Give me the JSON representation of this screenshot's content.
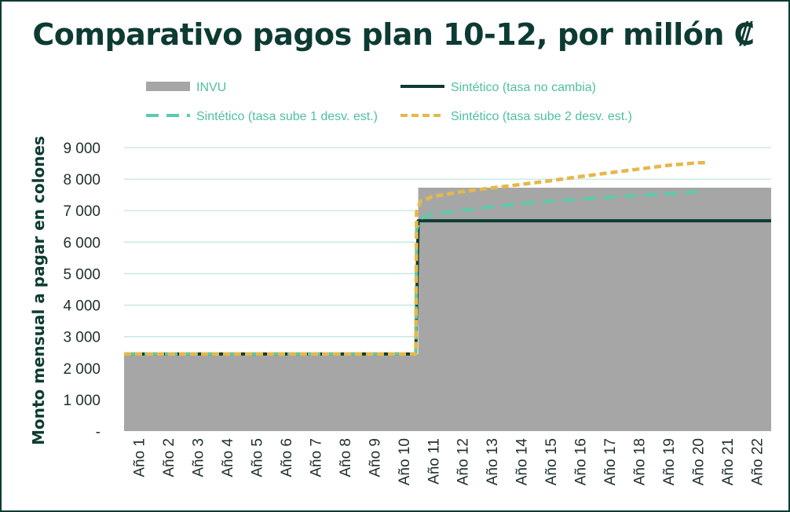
{
  "chart_data": {
    "type": "line",
    "title": "Comparativo pagos plan 10-12, por millón ₡",
    "ylabel": "Monto mensual a pagar en colones",
    "xlabel": "",
    "ylim": [
      0,
      9000
    ],
    "y_ticks": [
      {
        "value": 0,
        "label": "-"
      },
      {
        "value": 1000,
        "label": "1 000"
      },
      {
        "value": 2000,
        "label": "2 000"
      },
      {
        "value": 3000,
        "label": "3 000"
      },
      {
        "value": 4000,
        "label": "4 000"
      },
      {
        "value": 5000,
        "label": "5 000"
      },
      {
        "value": 6000,
        "label": "6 000"
      },
      {
        "value": 7000,
        "label": "7 000"
      },
      {
        "value": 8000,
        "label": "8 000"
      },
      {
        "value": 9000,
        "label": "9 000"
      }
    ],
    "categories": [
      "Año 1",
      "Año 2",
      "Año 3",
      "Año 4",
      "Año 5",
      "Año 6",
      "Año 7",
      "Año 8",
      "Año 9",
      "Año 10",
      "Año 11",
      "Año 12",
      "Año 13",
      "Año 14",
      "Año 15",
      "Año 16",
      "Año 17",
      "Año 18",
      "Año 19",
      "Año 20",
      "Año 21",
      "Año 22"
    ],
    "grid": true,
    "legend_position": "top",
    "series": [
      {
        "name": "INVU",
        "style": "area",
        "color": "#a6a6a6",
        "values": [
          2450,
          2450,
          2450,
          2450,
          2450,
          2450,
          2450,
          2450,
          2450,
          2450,
          7730,
          7730,
          7730,
          7730,
          7730,
          7730,
          7730,
          7730,
          7730,
          7730,
          7730,
          7730
        ]
      },
      {
        "name": "Sintético (tasa no cambia)",
        "style": "solid",
        "color": "#0d3b33",
        "values": [
          2450,
          2450,
          2450,
          2450,
          2450,
          2450,
          2450,
          2450,
          2450,
          2450,
          6680,
          6680,
          6680,
          6680,
          6680,
          6680,
          6680,
          6680,
          6680,
          6680,
          6680,
          6680
        ]
      },
      {
        "name": "Sintético (tasa sube 1 desv. est.)",
        "style": "dashed",
        "color": "#5ccbae",
        "values": [
          2450,
          2450,
          2450,
          2450,
          2450,
          2450,
          2450,
          2450,
          2450,
          2450,
          6900,
          7000,
          7120,
          7220,
          7300,
          7360,
          7420,
          7480,
          7540,
          7600,
          null,
          null
        ]
      },
      {
        "name": "Sintético (tasa sube 2 desv. est.)",
        "style": "dotted",
        "color": "#e6b84a",
        "values": [
          2450,
          2450,
          2450,
          2450,
          2450,
          2450,
          2450,
          2450,
          2450,
          2450,
          7450,
          7600,
          7720,
          7830,
          7950,
          8080,
          8200,
          8320,
          8440,
          8520,
          null,
          null
        ]
      }
    ]
  }
}
